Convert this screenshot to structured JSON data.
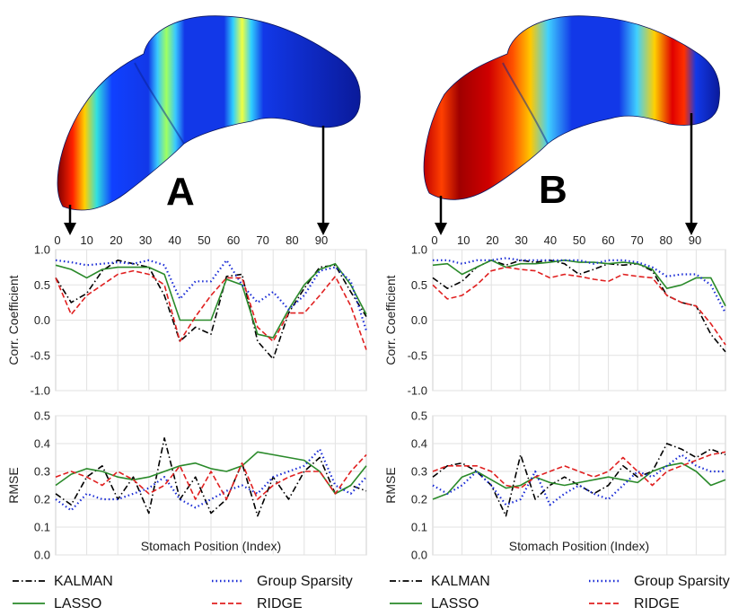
{
  "panels": [
    {
      "letter": "A",
      "stomach": "regional",
      "stomach_band_fraction": 0.55,
      "position_ticks": [
        "0",
        "10",
        "20",
        "30",
        "40",
        "50",
        "60",
        "70",
        "80",
        "90"
      ],
      "markers": [
        "0",
        "90"
      ]
    },
    {
      "letter": "B",
      "stomach": "spread",
      "stomach_band_fraction": 0.85,
      "position_ticks": [
        "0",
        "10",
        "20",
        "30",
        "40",
        "50",
        "60",
        "70",
        "80",
        "90"
      ],
      "markers": [
        "0",
        "90"
      ]
    }
  ],
  "legend": [
    {
      "name": "KALMAN",
      "color": "#000000",
      "dash": "dashdot"
    },
    {
      "name": "LASSO",
      "color": "#2a8a2a",
      "dash": "solid"
    },
    {
      "name": "Group Sparsity",
      "color": "#1a2cd6",
      "dash": "dotted"
    },
    {
      "name": "RIDGE",
      "color": "#e02020",
      "dash": "dashed"
    }
  ],
  "chart_data": [
    {
      "type": "line",
      "panel": "A",
      "metric": "corr",
      "xlabel": "",
      "ylabel": "Corr. Coefficient",
      "xlim": [
        0,
        100
      ],
      "ylim": [
        -1.0,
        1.0
      ],
      "yticks": [
        "1.0",
        "0.5",
        "0.0",
        "-0.5",
        "-1.0"
      ],
      "grid": true,
      "x": [
        0,
        5,
        10,
        15,
        20,
        25,
        30,
        35,
        40,
        45,
        50,
        55,
        60,
        65,
        70,
        75,
        80,
        85,
        90,
        95,
        100
      ],
      "series": [
        {
          "name": "KALMAN",
          "values": [
            0.6,
            0.25,
            0.38,
            0.7,
            0.85,
            0.8,
            0.75,
            0.35,
            -0.3,
            -0.1,
            -0.2,
            0.62,
            0.65,
            -0.3,
            -0.55,
            0.1,
            0.45,
            0.75,
            0.78,
            0.4,
            0.05
          ]
        },
        {
          "name": "LASSO",
          "values": [
            0.78,
            0.72,
            0.6,
            0.72,
            0.75,
            0.75,
            0.75,
            0.65,
            0.0,
            0.0,
            0.0,
            0.58,
            0.5,
            -0.2,
            -0.25,
            0.15,
            0.5,
            0.72,
            0.8,
            0.5,
            0.08
          ]
        },
        {
          "name": "Group Sparsity",
          "values": [
            0.85,
            0.82,
            0.78,
            0.8,
            0.82,
            0.8,
            0.85,
            0.78,
            0.3,
            0.55,
            0.55,
            0.85,
            0.5,
            0.25,
            0.4,
            0.15,
            0.35,
            0.7,
            0.75,
            0.55,
            -0.15
          ]
        },
        {
          "name": "RIDGE",
          "values": [
            0.6,
            0.08,
            0.35,
            0.5,
            0.65,
            0.7,
            0.65,
            0.5,
            -0.3,
            0.05,
            0.35,
            0.6,
            0.6,
            -0.1,
            -0.3,
            0.1,
            0.1,
            0.35,
            0.62,
            0.2,
            -0.42
          ]
        }
      ]
    },
    {
      "type": "line",
      "panel": "A",
      "metric": "rmse",
      "xlabel": "Stomach Position (Index)",
      "ylabel": "RMSE",
      "xlim": [
        0,
        100
      ],
      "ylim": [
        0.0,
        0.5
      ],
      "yticks": [
        "0.5",
        "0.4",
        "0.3",
        "0.2",
        "0.1",
        "0.0"
      ],
      "grid": true,
      "x": [
        0,
        5,
        10,
        15,
        20,
        25,
        30,
        35,
        40,
        45,
        50,
        55,
        60,
        65,
        70,
        75,
        80,
        85,
        90,
        95,
        100
      ],
      "series": [
        {
          "name": "KALMAN",
          "values": [
            0.22,
            0.18,
            0.28,
            0.32,
            0.2,
            0.28,
            0.15,
            0.42,
            0.2,
            0.28,
            0.15,
            0.2,
            0.33,
            0.14,
            0.28,
            0.2,
            0.3,
            0.35,
            0.22,
            0.25,
            0.23
          ]
        },
        {
          "name": "LASSO",
          "values": [
            0.25,
            0.29,
            0.31,
            0.3,
            0.28,
            0.27,
            0.28,
            0.3,
            0.32,
            0.33,
            0.31,
            0.3,
            0.32,
            0.37,
            0.36,
            0.35,
            0.34,
            0.3,
            0.22,
            0.25,
            0.32
          ]
        },
        {
          "name": "Group Sparsity",
          "values": [
            0.2,
            0.16,
            0.22,
            0.2,
            0.2,
            0.22,
            0.24,
            0.28,
            0.2,
            0.17,
            0.2,
            0.23,
            0.25,
            0.22,
            0.28,
            0.3,
            0.32,
            0.38,
            0.25,
            0.22,
            0.28
          ]
        },
        {
          "name": "RIDGE",
          "values": [
            0.28,
            0.3,
            0.28,
            0.25,
            0.3,
            0.27,
            0.22,
            0.25,
            0.32,
            0.2,
            0.3,
            0.2,
            0.33,
            0.2,
            0.25,
            0.28,
            0.3,
            0.3,
            0.22,
            0.3,
            0.36
          ]
        }
      ]
    },
    {
      "type": "line",
      "panel": "B",
      "metric": "corr",
      "xlabel": "",
      "ylabel": "Corr. Coefficient",
      "xlim": [
        0,
        100
      ],
      "ylim": [
        -1.0,
        1.0
      ],
      "yticks": [
        "1.0",
        "0.5",
        "0.0",
        "-0.5",
        "-1.0"
      ],
      "grid": true,
      "x": [
        0,
        5,
        10,
        15,
        20,
        25,
        30,
        35,
        40,
        45,
        50,
        55,
        60,
        65,
        70,
        75,
        80,
        85,
        90,
        95,
        100
      ],
      "series": [
        {
          "name": "KALMAN",
          "values": [
            0.6,
            0.45,
            0.55,
            0.75,
            0.85,
            0.78,
            0.85,
            0.82,
            0.85,
            0.8,
            0.65,
            0.72,
            0.8,
            0.78,
            0.8,
            0.7,
            0.35,
            0.25,
            0.2,
            -0.2,
            -0.45
          ]
        },
        {
          "name": "LASSO",
          "values": [
            0.78,
            0.8,
            0.65,
            0.75,
            0.85,
            0.75,
            0.8,
            0.8,
            0.82,
            0.85,
            0.82,
            0.82,
            0.8,
            0.82,
            0.8,
            0.72,
            0.45,
            0.5,
            0.6,
            0.6,
            0.2
          ]
        },
        {
          "name": "Group Sparsity",
          "values": [
            0.85,
            0.85,
            0.8,
            0.85,
            0.85,
            0.88,
            0.85,
            0.85,
            0.85,
            0.85,
            0.85,
            0.8,
            0.85,
            0.85,
            0.82,
            0.75,
            0.62,
            0.65,
            0.65,
            0.5,
            0.1
          ]
        },
        {
          "name": "RIDGE",
          "values": [
            0.5,
            0.3,
            0.35,
            0.5,
            0.7,
            0.75,
            0.72,
            0.7,
            0.6,
            0.65,
            0.62,
            0.58,
            0.55,
            0.65,
            0.62,
            0.6,
            0.35,
            0.25,
            0.2,
            -0.05,
            -0.35
          ]
        }
      ]
    },
    {
      "type": "line",
      "panel": "B",
      "metric": "rmse",
      "xlabel": "Stomach Position (Index)",
      "ylabel": "RMSE",
      "xlim": [
        0,
        100
      ],
      "ylim": [
        0.0,
        0.5
      ],
      "yticks": [
        "0.5",
        "0.4",
        "0.3",
        "0.2",
        "0.1",
        "0.0"
      ],
      "grid": true,
      "x": [
        0,
        5,
        10,
        15,
        20,
        25,
        30,
        35,
        40,
        45,
        50,
        55,
        60,
        65,
        70,
        75,
        80,
        85,
        90,
        95,
        100
      ],
      "series": [
        {
          "name": "KALMAN",
          "values": [
            0.28,
            0.32,
            0.33,
            0.3,
            0.25,
            0.14,
            0.36,
            0.2,
            0.25,
            0.28,
            0.25,
            0.22,
            0.25,
            0.32,
            0.28,
            0.3,
            0.4,
            0.38,
            0.35,
            0.38,
            0.36
          ]
        },
        {
          "name": "LASSO",
          "values": [
            0.2,
            0.22,
            0.28,
            0.3,
            0.27,
            0.24,
            0.25,
            0.28,
            0.26,
            0.25,
            0.26,
            0.27,
            0.28,
            0.27,
            0.26,
            0.3,
            0.32,
            0.33,
            0.3,
            0.25,
            0.27
          ]
        },
        {
          "name": "Group Sparsity",
          "values": [
            0.25,
            0.22,
            0.25,
            0.3,
            0.25,
            0.18,
            0.2,
            0.3,
            0.18,
            0.22,
            0.25,
            0.22,
            0.2,
            0.25,
            0.3,
            0.28,
            0.32,
            0.36,
            0.32,
            0.3,
            0.3
          ]
        },
        {
          "name": "RIDGE",
          "values": [
            0.3,
            0.32,
            0.32,
            0.32,
            0.3,
            0.25,
            0.24,
            0.28,
            0.3,
            0.32,
            0.3,
            0.28,
            0.3,
            0.35,
            0.3,
            0.25,
            0.3,
            0.32,
            0.34,
            0.36,
            0.37
          ]
        }
      ]
    }
  ]
}
